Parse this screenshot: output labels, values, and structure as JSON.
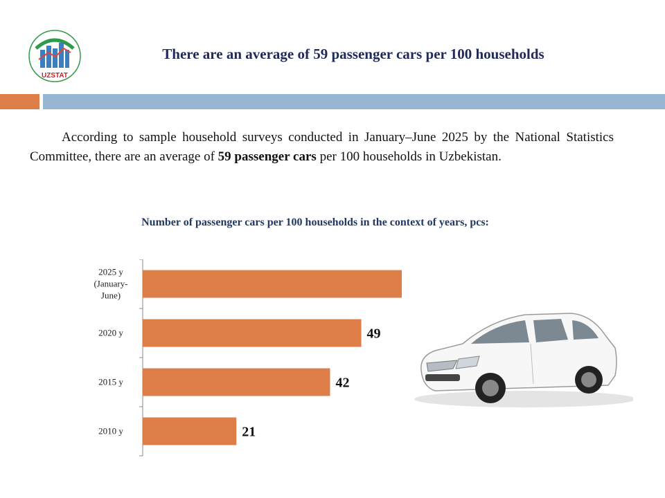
{
  "header": {
    "title": "There are an average of 59 passenger cars per 100 households",
    "logo_text": "UZSTAT"
  },
  "intro": {
    "part1": "According to sample household surveys conducted in January–June 2025 by the National Statistics Committee, there are an average of ",
    "bold": "59 passenger cars",
    "part2": " per 100 households in Uzbekistan."
  },
  "colors": {
    "bar": "#dd7d48",
    "title": "#1f3864",
    "band_orange": "#dd7d48",
    "band_blue": "#97b6d2"
  },
  "chart_data": {
    "type": "bar",
    "orientation": "horizontal",
    "title": "Number of passenger cars per 100 households in the context of years, pcs:",
    "categories": [
      "2025 y (January-June)",
      "2020 y",
      "2015 y",
      "2010 y"
    ],
    "category_lines": [
      [
        "2025 y",
        "(January-",
        "June)"
      ],
      [
        "2020 y"
      ],
      [
        "2015 y"
      ],
      [
        "2010 y"
      ]
    ],
    "values": [
      59,
      49,
      42,
      21
    ],
    "data_labels": true,
    "grid": false,
    "legend": "none"
  },
  "image": {
    "icon": "white-sedan-car"
  }
}
